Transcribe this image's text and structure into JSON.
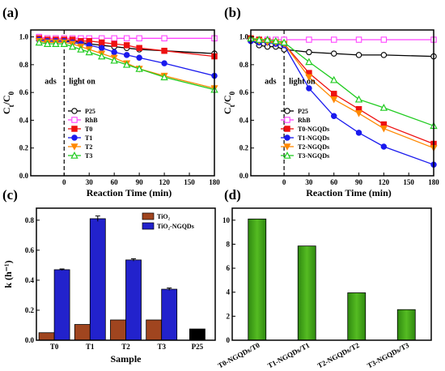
{
  "chart_data": [
    {
      "panel": "(a)",
      "type": "line",
      "xlabel": "Reaction Time (min)",
      "ylabel": "C_t/C_0",
      "xlim": [
        -40,
        180
      ],
      "ylim": [
        0,
        1.05
      ],
      "xticks": [
        0,
        30,
        60,
        90,
        120,
        150,
        180
      ],
      "yticks": [
        0.0,
        0.2,
        0.4,
        0.6,
        0.8,
        1.0
      ],
      "annotations": [
        "ads",
        "light on"
      ],
      "x": [
        -30,
        -20,
        -10,
        0,
        10,
        20,
        30,
        45,
        60,
        75,
        90,
        120,
        180
      ],
      "series": [
        {
          "name": "P25",
          "color": "#000000",
          "marker": "circle-open",
          "values": [
            0.98,
            0.97,
            0.97,
            0.97,
            0.97,
            0.96,
            0.95,
            0.94,
            0.93,
            0.92,
            0.91,
            0.9,
            0.88
          ]
        },
        {
          "name": "RhB",
          "color": "#ff44ff",
          "marker": "square-open",
          "values": [
            1.0,
            0.99,
            0.99,
            0.99,
            0.99,
            0.99,
            0.99,
            0.99,
            0.99,
            0.99,
            0.99,
            0.99,
            0.99
          ]
        },
        {
          "name": "T0",
          "color": "#ee1111",
          "marker": "square",
          "values": [
            0.99,
            0.98,
            0.98,
            0.98,
            0.98,
            0.97,
            0.97,
            0.96,
            0.95,
            0.94,
            0.92,
            0.9,
            0.86
          ]
        },
        {
          "name": "T1",
          "color": "#1a1aee",
          "marker": "circle",
          "values": [
            0.98,
            0.97,
            0.97,
            0.97,
            0.96,
            0.95,
            0.94,
            0.92,
            0.89,
            0.87,
            0.85,
            0.81,
            0.72
          ]
        },
        {
          "name": "T2",
          "color": "#ff8800",
          "marker": "triangle-down",
          "values": [
            0.97,
            0.96,
            0.96,
            0.96,
            0.95,
            0.93,
            0.91,
            0.88,
            0.85,
            0.81,
            0.77,
            0.72,
            0.63
          ]
        },
        {
          "name": "T3",
          "color": "#22cc22",
          "marker": "triangle-up-open",
          "values": [
            0.96,
            0.95,
            0.95,
            0.95,
            0.93,
            0.91,
            0.89,
            0.86,
            0.83,
            0.8,
            0.77,
            0.71,
            0.62
          ]
        }
      ],
      "legend_position": "bottom-left"
    },
    {
      "panel": "(b)",
      "type": "line",
      "xlabel": "Reaction Time (min)",
      "ylabel": "C_t/C_0",
      "xlim": [
        -40,
        180
      ],
      "ylim": [
        0,
        1.05
      ],
      "xticks": [
        0,
        30,
        60,
        90,
        120,
        150,
        180
      ],
      "yticks": [
        0.0,
        0.2,
        0.4,
        0.6,
        0.8,
        1.0
      ],
      "annotations": [
        "ads",
        "light on"
      ],
      "x": [
        -40,
        -30,
        -20,
        -10,
        0,
        30,
        60,
        90,
        120,
        180
      ],
      "series": [
        {
          "name": "P25",
          "color": "#000000",
          "marker": "circle-open",
          "values": [
            0.98,
            0.94,
            0.93,
            0.93,
            0.91,
            0.89,
            0.88,
            0.87,
            0.87,
            0.86
          ]
        },
        {
          "name": "RhB",
          "color": "#ff44ff",
          "marker": "square-open",
          "values": [
            0.98,
            0.98,
            0.98,
            0.98,
            0.98,
            0.98,
            0.98,
            0.98,
            0.98,
            0.98
          ]
        },
        {
          "name": "T0-NGQDs",
          "color": "#ee1111",
          "marker": "square",
          "values": [
            0.99,
            0.98,
            0.97,
            0.96,
            0.95,
            0.74,
            0.59,
            0.48,
            0.37,
            0.23
          ]
        },
        {
          "name": "T1-NGQDs",
          "color": "#1a1aee",
          "marker": "circle",
          "values": [
            0.97,
            0.96,
            0.96,
            0.95,
            0.94,
            0.63,
            0.43,
            0.31,
            0.21,
            0.08
          ]
        },
        {
          "name": "T2-NGQDs",
          "color": "#ff8800",
          "marker": "triangle-down",
          "values": [
            0.98,
            0.97,
            0.96,
            0.96,
            0.95,
            0.71,
            0.55,
            0.45,
            0.34,
            0.2
          ]
        },
        {
          "name": "T3-NGQDs",
          "color": "#22cc22",
          "marker": "triangle-up-open",
          "values": [
            0.99,
            0.98,
            0.98,
            0.97,
            0.96,
            0.82,
            0.69,
            0.55,
            0.49,
            0.36
          ]
        }
      ],
      "legend_position": "bottom-left"
    },
    {
      "panel": "(c)",
      "type": "bar",
      "xlabel": "Sample",
      "ylabel": "k (h⁻¹)",
      "ylim": [
        0,
        0.88
      ],
      "yticks": [
        0.0,
        0.2,
        0.4,
        0.6,
        0.8
      ],
      "categories": [
        "T0",
        "T1",
        "T2",
        "T3",
        "P25"
      ],
      "series": [
        {
          "name": "TiO₂",
          "color": "#a0451f",
          "values": [
            0.05,
            0.105,
            0.135,
            0.135,
            null
          ]
        },
        {
          "name": "TiO₂-NGQDs",
          "color": "#2222cc",
          "values": [
            0.47,
            0.81,
            0.535,
            0.34,
            null
          ]
        }
      ],
      "p25_value": 0.075,
      "p25_color": "#000000",
      "error_bars": [
        0.005,
        0.018,
        0.008,
        0.008
      ],
      "legend_position": "top-right"
    },
    {
      "panel": "(d)",
      "type": "bar",
      "ylim": [
        0,
        11
      ],
      "yticks": [
        0,
        2,
        4,
        6,
        8,
        10
      ],
      "categories": [
        "T0-NGQDs/T0",
        "T1-NGQDs/T1",
        "T2-NGQDs/T2",
        "T3-NGQDs/T3"
      ],
      "values": [
        10.1,
        7.85,
        3.95,
        2.55
      ],
      "color": "#55bb22"
    }
  ]
}
